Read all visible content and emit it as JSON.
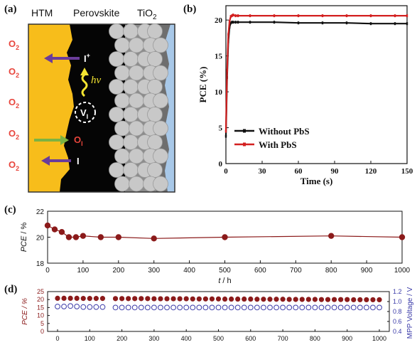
{
  "panels": {
    "a": {
      "letter": "(a)",
      "layers": [
        "HTM",
        "Perovskite",
        "TiO",
        "2"
      ],
      "o2_label": "O",
      "o2_sub": "2",
      "o2_count": 5,
      "hole_label": "I",
      "hole_sup": "+",
      "photon_label": "hν",
      "vacancy_label": "V",
      "vacancy_sub": "I",
      "interstitial_label": "O",
      "interstitial_sub": "I",
      "iodide_label": "I",
      "colors": {
        "htm": "#f7bd1b",
        "perovskite": "#050505",
        "tio2_dark": "#757575",
        "tio2_blue": "#a8c8e8",
        "arrow_purple": "#6a3c9a",
        "arrow_green": "#7cb342",
        "photon_yellow": "#f4e531",
        "o2_red": "#e8453c"
      }
    },
    "b": {
      "letter": "(b)"
    },
    "c": {
      "letter": "(c)"
    },
    "d": {
      "letter": "(d)"
    }
  },
  "chart_data": [
    {
      "id": "b",
      "type": "line",
      "xlabel": "Time (s)",
      "ylabel": "PCE (%)",
      "xlim": [
        0,
        150
      ],
      "ylim": [
        0,
        22
      ],
      "xticks": [
        0,
        30,
        60,
        90,
        120,
        150
      ],
      "yticks": [
        0,
        5,
        10,
        15,
        20
      ],
      "legend_position": "bottom-right",
      "series": [
        {
          "name": "Without PbS",
          "color": "#111111",
          "x": [
            0,
            1,
            2,
            3,
            4,
            5,
            6,
            8,
            10,
            20,
            40,
            60,
            80,
            100,
            120,
            140,
            150
          ],
          "y": [
            3.8,
            12,
            17,
            19,
            19.6,
            19.7,
            19.7,
            19.7,
            19.7,
            19.7,
            19.7,
            19.6,
            19.6,
            19.6,
            19.5,
            19.5,
            19.5
          ]
        },
        {
          "name": "With PbS",
          "color": "#d32020",
          "x": [
            0,
            1,
            2,
            3,
            4,
            5,
            6,
            8,
            10,
            20,
            40,
            60,
            80,
            100,
            120,
            140,
            150
          ],
          "y": [
            4.5,
            13,
            18,
            19.8,
            20.5,
            20.6,
            20.7,
            20.6,
            20.6,
            20.6,
            20.6,
            20.6,
            20.6,
            20.6,
            20.6,
            20.6,
            20.6
          ]
        }
      ]
    },
    {
      "id": "c",
      "type": "line",
      "xlabel": "t",
      "xunit": "h",
      "ylabel": "PCE",
      "yunit": "%",
      "xlim": [
        0,
        1000
      ],
      "ylim": [
        18,
        22
      ],
      "xticks": [
        0,
        100,
        200,
        300,
        400,
        500,
        600,
        700,
        800,
        900,
        1000
      ],
      "yticks": [
        18,
        20,
        22
      ],
      "series": [
        {
          "color": "#8b1a1a",
          "x": [
            0,
            20,
            40,
            60,
            80,
            100,
            150,
            200,
            300,
            500,
            800,
            1000
          ],
          "y": [
            20.9,
            20.6,
            20.4,
            20.0,
            20.0,
            20.1,
            20.0,
            20.0,
            19.9,
            20.0,
            20.1,
            20.0
          ]
        }
      ]
    },
    {
      "id": "d",
      "type": "scatter",
      "ylabel_left": "PCE / %",
      "ylabel_right": "MPP Voltage / V",
      "xlim": [
        0,
        1000
      ],
      "ylim_left": [
        0,
        25
      ],
      "ylim_right": [
        0.4,
        1.2
      ],
      "xticks": [
        0,
        100,
        200,
        300,
        400,
        500,
        600,
        700,
        800,
        900,
        1000
      ],
      "yticks_left": [
        0,
        5,
        10,
        15,
        20,
        25
      ],
      "yticks_right": [
        0.4,
        0.6,
        0.8,
        1.0,
        1.2
      ],
      "series": [
        {
          "axis": "left",
          "marker": "filled",
          "color": "#8b1a1a",
          "x": [
            0,
            20,
            40,
            60,
            80,
            100,
            120,
            140,
            180,
            200,
            220,
            240,
            260,
            280,
            300,
            320,
            340,
            360,
            380,
            400,
            420,
            440,
            460,
            480,
            500,
            520,
            540,
            560,
            580,
            600,
            620,
            640,
            660,
            680,
            700,
            720,
            740,
            760,
            780,
            800,
            820,
            840,
            860,
            880,
            900,
            920,
            940,
            960,
            980,
            1000
          ],
          "y": [
            20.8,
            20.8,
            20.8,
            20.8,
            20.7,
            20.7,
            20.7,
            20.7,
            20.6,
            20.6,
            20.6,
            20.6,
            20.6,
            20.6,
            20.5,
            20.5,
            20.5,
            20.5,
            20.5,
            20.5,
            20.4,
            20.4,
            20.4,
            20.4,
            20.4,
            20.3,
            20.3,
            20.3,
            20.3,
            20.3,
            20.2,
            20.2,
            20.2,
            20.2,
            20.2,
            20.1,
            20.1,
            20.1,
            20.1,
            20.1,
            20.0,
            20.0,
            20.0,
            20.0,
            20.0,
            19.9,
            19.9,
            19.9,
            19.9,
            19.9
          ]
        },
        {
          "axis": "right",
          "marker": "open",
          "color": "#3a3aa8",
          "x": [
            0,
            20,
            40,
            60,
            80,
            100,
            120,
            140,
            180,
            200,
            220,
            240,
            260,
            280,
            300,
            320,
            340,
            360,
            380,
            400,
            420,
            440,
            460,
            480,
            500,
            520,
            540,
            560,
            580,
            600,
            620,
            640,
            660,
            680,
            700,
            720,
            740,
            760,
            780,
            800,
            820,
            840,
            860,
            880,
            900,
            920,
            940,
            960,
            980,
            1000
          ],
          "y": [
            0.9,
            0.9,
            0.91,
            0.9,
            0.89,
            0.89,
            0.89,
            0.89,
            0.88,
            0.88,
            0.88,
            0.88,
            0.88,
            0.88,
            0.88,
            0.88,
            0.88,
            0.88,
            0.88,
            0.88,
            0.88,
            0.88,
            0.88,
            0.88,
            0.88,
            0.88,
            0.88,
            0.88,
            0.88,
            0.88,
            0.88,
            0.88,
            0.88,
            0.88,
            0.88,
            0.88,
            0.88,
            0.88,
            0.88,
            0.88,
            0.88,
            0.88,
            0.88,
            0.88,
            0.88,
            0.88,
            0.88,
            0.88,
            0.88,
            0.88
          ]
        }
      ]
    }
  ]
}
